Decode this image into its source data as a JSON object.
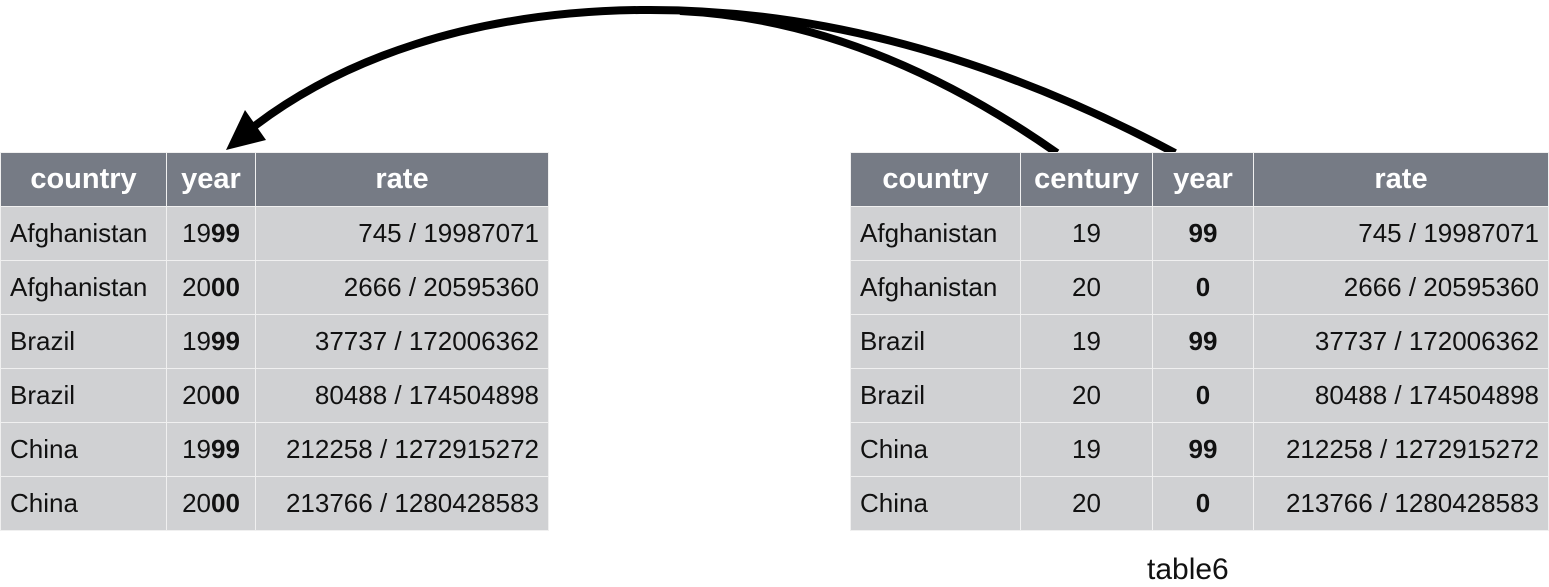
{
  "left_table": {
    "headers": [
      "country",
      "year",
      "rate"
    ],
    "rows": [
      {
        "country": "Afghanistan",
        "year_prefix": "19",
        "year_suffix": "99",
        "rate": "745 / 19987071"
      },
      {
        "country": "Afghanistan",
        "year_prefix": "20",
        "year_suffix": "00",
        "rate": "2666 / 20595360"
      },
      {
        "country": "Brazil",
        "year_prefix": "19",
        "year_suffix": "99",
        "rate": "37737 / 172006362"
      },
      {
        "country": "Brazil",
        "year_prefix": "20",
        "year_suffix": "00",
        "rate": "80488 / 174504898"
      },
      {
        "country": "China",
        "year_prefix": "19",
        "year_suffix": "99",
        "rate": "212258 / 1272915272"
      },
      {
        "country": "China",
        "year_prefix": "20",
        "year_suffix": "00",
        "rate": "213766 / 1280428583"
      }
    ]
  },
  "right_table": {
    "label": "table6",
    "headers": [
      "country",
      "century",
      "year",
      "rate"
    ],
    "rows": [
      {
        "country": "Afghanistan",
        "century": "19",
        "year": "99",
        "rate": "745 / 19987071"
      },
      {
        "country": "Afghanistan",
        "century": "20",
        "year": "0",
        "rate": "2666 / 20595360"
      },
      {
        "country": "Brazil",
        "century": "19",
        "year": "99",
        "rate": "37737 / 172006362"
      },
      {
        "country": "Brazil",
        "century": "20",
        "year": "0",
        "rate": "80488 / 174504898"
      },
      {
        "country": "China",
        "century": "19",
        "year": "99",
        "rate": "212258 / 1272915272"
      },
      {
        "country": "China",
        "century": "20",
        "year": "0",
        "rate": "213766 / 1280428583"
      }
    ]
  },
  "colors": {
    "header_bg": "#767b85",
    "cell_bg": "#d0d1d3",
    "arrow": "#000000"
  }
}
